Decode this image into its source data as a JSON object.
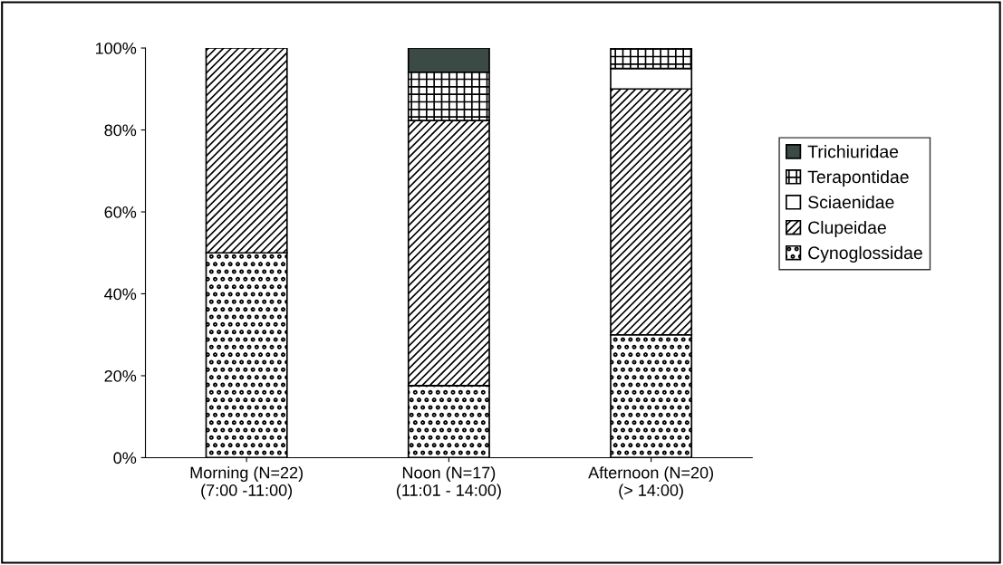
{
  "chart_data": {
    "type": "bar",
    "stacked": true,
    "categories": [
      "Morning (N=22)\n(7:00 -11:00)",
      "Noon (N=17)\n(11:01 - 14:00)",
      "Afternoon (N=20)\n(> 14:00)"
    ],
    "series": [
      {
        "name": "Cynoglossidae",
        "color": "#000000",
        "values": [
          50,
          17.6,
          30
        ]
      },
      {
        "name": "Clupeidae",
        "color": "#000000",
        "values": [
          50,
          64.7,
          60
        ]
      },
      {
        "name": "Sciaenidae",
        "color": "#ffffff",
        "values": [
          0,
          0,
          5
        ]
      },
      {
        "name": "Terapontidae",
        "color": "#000000",
        "values": [
          0,
          11.8,
          5
        ]
      },
      {
        "name": "Trichiuridae",
        "color": "#3b4a44",
        "values": [
          0,
          5.9,
          0
        ]
      }
    ],
    "ylim": [
      0,
      100
    ],
    "yticks": [
      {
        "value": 0,
        "label": "0%"
      },
      {
        "value": 20,
        "label": "20%"
      },
      {
        "value": 40,
        "label": "40%"
      },
      {
        "value": 60,
        "label": "60%"
      },
      {
        "value": 80,
        "label": "80%"
      },
      {
        "value": 100,
        "label": "100%"
      }
    ],
    "grid": false,
    "legend": "right"
  }
}
